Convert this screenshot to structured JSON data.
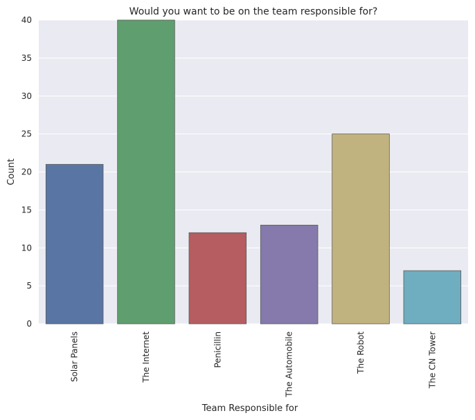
{
  "chart_data": {
    "type": "bar",
    "title": "Would you want to be on the team responsible for?",
    "xlabel": "Team Responsible for",
    "ylabel": "Count",
    "categories": [
      "Solar Panels",
      "The Internet",
      "Penicillin",
      "The Automobile",
      "The Robot",
      "The CN Tower"
    ],
    "values": [
      21,
      40,
      12,
      13,
      25,
      7
    ],
    "ylim": [
      0,
      40
    ],
    "yticks": [
      "0",
      "5",
      "10",
      "15",
      "20",
      "25",
      "30",
      "35",
      "40"
    ],
    "grid": true,
    "colors": [
      "#5975a4",
      "#5f9e6e",
      "#b55d60",
      "#857aab",
      "#c1b37f",
      "#6fadc0"
    ],
    "background": "#eaeaf2"
  }
}
